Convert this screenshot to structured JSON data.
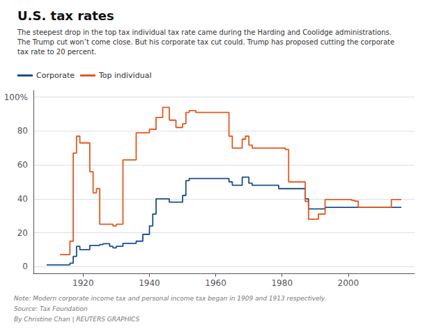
{
  "chart_data": {
    "type": "step",
    "title": "U.S. tax rates",
    "subtitle": "The steepest drop in the top tax individual tax rate came during the Harding and Coolidge administrations.\nThe Trump cut won’t come close. But his corporate tax cut could. Trump has proposed cutting the corporate\ntax rate to 20 percent.",
    "annotations": [
      "Note: Modern corporate income tax and personal income tax began in 1909 and 1913 respectively.",
      "Source: Tax Foundation",
      "By Christine Chan | REUTERS GRAPHICS"
    ],
    "xlim": [
      1905,
      2020
    ],
    "xticks": [
      1920,
      1940,
      1960,
      1980,
      2000
    ],
    "ylim": [
      -4,
      104
    ],
    "yticks": [
      0,
      20,
      40,
      60,
      80,
      {
        "value": 100,
        "label": "100%"
      }
    ],
    "grid": "y",
    "series": [
      {
        "name": "Corporate",
        "color": "#1a4f8a",
        "x": [
          1909,
          1910,
          1911,
          1912,
          1913,
          1914,
          1915,
          1916,
          1917,
          1918,
          1919,
          1920,
          1921,
          1922,
          1923,
          1924,
          1925,
          1926,
          1927,
          1928,
          1929,
          1930,
          1931,
          1932,
          1933,
          1934,
          1935,
          1936,
          1937,
          1938,
          1939,
          1940,
          1941,
          1942,
          1943,
          1944,
          1945,
          1946,
          1947,
          1948,
          1949,
          1950,
          1951,
          1952,
          1953,
          1954,
          1955,
          1956,
          1957,
          1958,
          1959,
          1960,
          1961,
          1962,
          1963,
          1964,
          1965,
          1966,
          1967,
          1968,
          1969,
          1970,
          1971,
          1972,
          1973,
          1974,
          1975,
          1976,
          1977,
          1978,
          1979,
          1980,
          1981,
          1982,
          1983,
          1984,
          1985,
          1986,
          1987,
          1988,
          1989,
          1990,
          1991,
          1992,
          1993,
          1994,
          1995,
          1996,
          1997,
          1998,
          1999,
          2000,
          2001,
          2002,
          2003,
          2004,
          2005,
          2006,
          2007,
          2008,
          2009,
          2010,
          2011,
          2012,
          2013,
          2014,
          2015,
          2016
        ],
        "values": [
          1,
          1,
          1,
          1,
          1,
          1,
          1,
          2,
          6,
          12,
          10,
          10,
          10,
          12.5,
          12.5,
          12.5,
          13,
          13.5,
          13.5,
          12,
          11,
          12,
          12,
          13.75,
          13.75,
          13.75,
          13.75,
          15,
          15,
          19,
          19,
          24,
          31,
          40,
          40,
          40,
          40,
          38,
          38,
          38,
          38,
          42,
          50.75,
          52,
          52,
          52,
          52,
          52,
          52,
          52,
          52,
          52,
          52,
          52,
          52,
          50,
          48,
          48,
          48,
          52.8,
          52.8,
          49.2,
          48,
          48,
          48,
          48,
          48,
          48,
          48,
          48,
          46,
          46,
          46,
          46,
          46,
          46,
          46,
          46,
          40,
          34,
          34,
          34,
          34,
          34,
          35,
          35,
          35,
          35,
          35,
          35,
          35,
          35,
          35,
          35,
          35,
          35,
          35,
          35,
          35,
          35,
          35,
          35,
          35,
          35,
          35,
          35,
          35,
          35
        ]
      },
      {
        "name": "Top individual",
        "color": "#e05a1e",
        "x": [
          1913,
          1914,
          1915,
          1916,
          1917,
          1918,
          1919,
          1920,
          1921,
          1922,
          1923,
          1924,
          1925,
          1926,
          1927,
          1928,
          1929,
          1930,
          1931,
          1932,
          1933,
          1934,
          1935,
          1936,
          1937,
          1938,
          1939,
          1940,
          1941,
          1942,
          1943,
          1944,
          1945,
          1946,
          1947,
          1948,
          1949,
          1950,
          1951,
          1952,
          1953,
          1954,
          1955,
          1956,
          1957,
          1958,
          1959,
          1960,
          1961,
          1962,
          1963,
          1964,
          1965,
          1966,
          1967,
          1968,
          1969,
          1970,
          1971,
          1972,
          1973,
          1974,
          1975,
          1976,
          1977,
          1978,
          1979,
          1980,
          1981,
          1982,
          1983,
          1984,
          1985,
          1986,
          1987,
          1988,
          1989,
          1990,
          1991,
          1992,
          1993,
          1994,
          1995,
          1996,
          1997,
          1998,
          1999,
          2000,
          2001,
          2002,
          2003,
          2004,
          2005,
          2006,
          2007,
          2008,
          2009,
          2010,
          2011,
          2012,
          2013,
          2014,
          2015,
          2016
        ],
        "values": [
          7,
          7,
          7,
          15,
          67,
          77,
          73,
          73,
          73,
          56,
          43.5,
          46,
          25,
          25,
          25,
          25,
          24,
          25,
          25,
          63,
          63,
          63,
          63,
          79,
          79,
          79,
          79,
          81.1,
          81,
          88,
          88,
          94,
          94,
          86.45,
          86.45,
          82.13,
          82.13,
          84.36,
          91,
          92,
          92,
          91,
          91,
          91,
          91,
          91,
          91,
          91,
          91,
          91,
          91,
          77,
          70,
          70,
          70,
          75.25,
          77,
          71.75,
          70,
          70,
          70,
          70,
          70,
          70,
          70,
          70,
          70,
          70,
          69.125,
          50,
          50,
          50,
          50,
          50,
          38.5,
          28,
          28,
          28,
          31,
          31,
          39.6,
          39.6,
          39.6,
          39.6,
          39.6,
          39.6,
          39.6,
          39.6,
          39.1,
          38.6,
          35,
          35,
          35,
          35,
          35,
          35,
          35,
          35,
          35,
          35,
          39.6,
          39.6,
          39.6,
          39.6
        ]
      }
    ]
  }
}
